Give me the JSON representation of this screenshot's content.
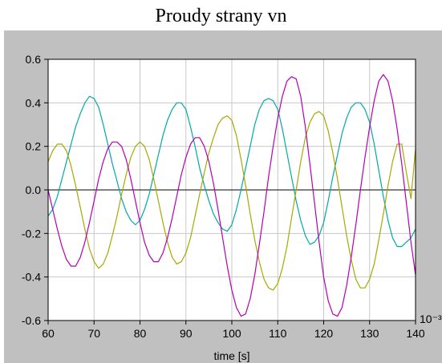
{
  "title": "Proudy strany vn",
  "chart_data": {
    "type": "line",
    "title": "Proudy strany vn",
    "xlabel": "time [s]",
    "ylabel": "",
    "x_scale_note": "10⁻³",
    "xlim": [
      60,
      140
    ],
    "ylim": [
      -0.6,
      0.6
    ],
    "x_ticks": [
      60,
      70,
      80,
      90,
      100,
      110,
      120,
      130,
      140
    ],
    "y_ticks": [
      0.6,
      0.4,
      0.2,
      0.0,
      -0.2,
      -0.4,
      -0.6
    ],
    "x_tick_labels": [
      "60",
      "70",
      "80",
      "90",
      "100",
      "110",
      "120",
      "130",
      "140"
    ],
    "y_tick_labels": [
      "0.6",
      "0.4",
      "0.2",
      "0.0",
      "-0.2",
      "-0.4",
      "-0.6"
    ],
    "grid": true,
    "zero_line": true,
    "background": "#c0c0c0",
    "plot_background": "#ffffff",
    "grid_color": "#c8c8c8",
    "series": [
      {
        "color": "#00a8a8",
        "x": [
          60,
          61,
          62,
          63,
          64,
          65,
          66,
          67,
          68,
          69,
          70,
          71,
          72,
          73,
          74,
          75,
          76,
          77,
          78,
          79,
          80,
          81,
          82,
          83,
          84,
          85,
          86,
          87,
          88,
          89,
          90,
          91,
          92,
          93,
          94,
          95,
          96,
          97,
          98,
          99,
          100,
          101,
          102,
          103,
          104,
          105,
          106,
          107,
          108,
          109,
          110,
          111,
          112,
          113,
          114,
          115,
          116,
          117,
          118,
          119,
          120,
          121,
          122,
          123,
          124,
          125,
          126,
          127,
          128,
          129,
          130,
          131,
          132,
          133,
          134,
          135,
          136,
          137,
          138,
          139,
          140
        ],
        "y": [
          -0.12,
          -0.09,
          -0.03,
          0.05,
          0.13,
          0.21,
          0.29,
          0.35,
          0.4,
          0.43,
          0.42,
          0.38,
          0.3,
          0.21,
          0.12,
          0.04,
          -0.04,
          -0.1,
          -0.14,
          -0.16,
          -0.14,
          -0.09,
          -0.02,
          0.07,
          0.16,
          0.25,
          0.32,
          0.37,
          0.4,
          0.4,
          0.37,
          0.29,
          0.2,
          0.1,
          0.02,
          -0.05,
          -0.11,
          -0.15,
          -0.18,
          -0.19,
          -0.16,
          -0.09,
          0.0,
          0.1,
          0.2,
          0.3,
          0.37,
          0.41,
          0.42,
          0.41,
          0.37,
          0.28,
          0.17,
          0.06,
          -0.05,
          -0.14,
          -0.21,
          -0.25,
          -0.24,
          -0.21,
          -0.15,
          -0.05,
          0.06,
          0.16,
          0.26,
          0.33,
          0.38,
          0.4,
          0.4,
          0.37,
          0.31,
          0.21,
          0.09,
          -0.03,
          -0.14,
          -0.22,
          -0.26,
          -0.26,
          -0.24,
          -0.22,
          -0.18
        ]
      },
      {
        "color": "#a8a800",
        "x": [
          60,
          61,
          62,
          63,
          64,
          65,
          66,
          67,
          68,
          69,
          70,
          71,
          72,
          73,
          74,
          75,
          76,
          77,
          78,
          79,
          80,
          81,
          82,
          83,
          84,
          85,
          86,
          87,
          88,
          89,
          90,
          91,
          92,
          93,
          94,
          95,
          96,
          97,
          98,
          99,
          100,
          101,
          102,
          103,
          104,
          105,
          106,
          107,
          108,
          109,
          110,
          111,
          112,
          113,
          114,
          115,
          116,
          117,
          118,
          119,
          120,
          121,
          122,
          123,
          124,
          125,
          126,
          127,
          128,
          129,
          130,
          131,
          132,
          133,
          134,
          135,
          136,
          137,
          138,
          139,
          140
        ],
        "y": [
          0.13,
          0.18,
          0.21,
          0.21,
          0.18,
          0.11,
          0.02,
          -0.08,
          -0.18,
          -0.27,
          -0.33,
          -0.36,
          -0.34,
          -0.29,
          -0.21,
          -0.12,
          -0.02,
          0.07,
          0.15,
          0.2,
          0.22,
          0.2,
          0.14,
          0.05,
          -0.05,
          -0.15,
          -0.24,
          -0.31,
          -0.34,
          -0.33,
          -0.29,
          -0.22,
          -0.12,
          -0.02,
          0.08,
          0.17,
          0.24,
          0.3,
          0.33,
          0.34,
          0.32,
          0.25,
          0.14,
          0.02,
          -0.11,
          -0.23,
          -0.33,
          -0.41,
          -0.45,
          -0.46,
          -0.43,
          -0.36,
          -0.26,
          -0.13,
          0.0,
          0.13,
          0.24,
          0.31,
          0.35,
          0.36,
          0.34,
          0.27,
          0.17,
          0.05,
          -0.08,
          -0.21,
          -0.32,
          -0.41,
          -0.45,
          -0.45,
          -0.41,
          -0.34,
          -0.23,
          -0.11,
          0.02,
          0.13,
          0.21,
          0.21,
          0.08,
          -0.04,
          0.19
        ]
      },
      {
        "color": "#b400b4",
        "x": [
          60,
          61,
          62,
          63,
          64,
          65,
          66,
          67,
          68,
          69,
          70,
          71,
          72,
          73,
          74,
          75,
          76,
          77,
          78,
          79,
          80,
          81,
          82,
          83,
          84,
          85,
          86,
          87,
          88,
          89,
          90,
          91,
          92,
          93,
          94,
          95,
          96,
          97,
          98,
          99,
          100,
          101,
          102,
          103,
          104,
          105,
          106,
          107,
          108,
          109,
          110,
          111,
          112,
          113,
          114,
          115,
          116,
          117,
          118,
          119,
          120,
          121,
          122,
          123,
          124,
          125,
          126,
          127,
          128,
          129,
          130,
          131,
          132,
          133,
          134,
          135,
          136,
          137,
          138,
          139,
          140
        ],
        "y": [
          0.0,
          -0.09,
          -0.18,
          -0.26,
          -0.32,
          -0.35,
          -0.35,
          -0.31,
          -0.24,
          -0.15,
          -0.05,
          0.05,
          0.13,
          0.19,
          0.22,
          0.22,
          0.2,
          0.14,
          0.05,
          -0.05,
          -0.15,
          -0.24,
          -0.3,
          -0.33,
          -0.33,
          -0.29,
          -0.22,
          -0.13,
          -0.03,
          0.07,
          0.15,
          0.21,
          0.24,
          0.24,
          0.2,
          0.13,
          0.03,
          -0.09,
          -0.22,
          -0.35,
          -0.46,
          -0.54,
          -0.58,
          -0.57,
          -0.5,
          -0.39,
          -0.25,
          -0.1,
          0.06,
          0.2,
          0.33,
          0.43,
          0.5,
          0.52,
          0.51,
          0.43,
          0.29,
          0.12,
          -0.06,
          -0.24,
          -0.4,
          -0.51,
          -0.57,
          -0.58,
          -0.54,
          -0.44,
          -0.31,
          -0.16,
          0.0,
          0.15,
          0.29,
          0.41,
          0.5,
          0.53,
          0.5,
          0.41,
          0.28,
          0.12,
          -0.06,
          -0.24,
          -0.39
        ]
      }
    ]
  }
}
